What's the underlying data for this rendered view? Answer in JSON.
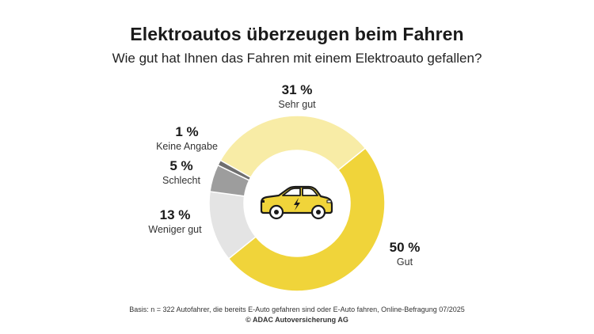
{
  "title": "Elektroautos überzeugen beim Fahren",
  "subtitle": "Wie gut hat Ihnen das Fahren mit einem Elektroauto gefallen?",
  "chart_data": {
    "type": "pie",
    "variant": "donut",
    "unit": "%",
    "slices": [
      {
        "label": "Gut",
        "value": 50,
        "pct_label": "50 %",
        "color": "#f0d43a"
      },
      {
        "label": "Weniger gut",
        "value": 13,
        "pct_label": "13 %",
        "color": "#e4e4e4"
      },
      {
        "label": "Schlecht",
        "value": 5,
        "pct_label": "5 %",
        "color": "#9d9d9d"
      },
      {
        "label": "Keine Angabe",
        "value": 1,
        "pct_label": "1 %",
        "color": "#6f6f6f"
      },
      {
        "label": "Sehr gut",
        "value": 31,
        "pct_label": "31 %",
        "color": "#f8eca6"
      }
    ],
    "center_icon": "electric-car-icon",
    "center_icon_color": "#f0d43a"
  },
  "footer": {
    "basis": "Basis: n = 322 Autofahrer, die bereits E-Auto gefahren sind oder E-Auto fahren, Online-Befragung 07/2025",
    "copyright": "© ADAC Autoversicherung AG"
  }
}
